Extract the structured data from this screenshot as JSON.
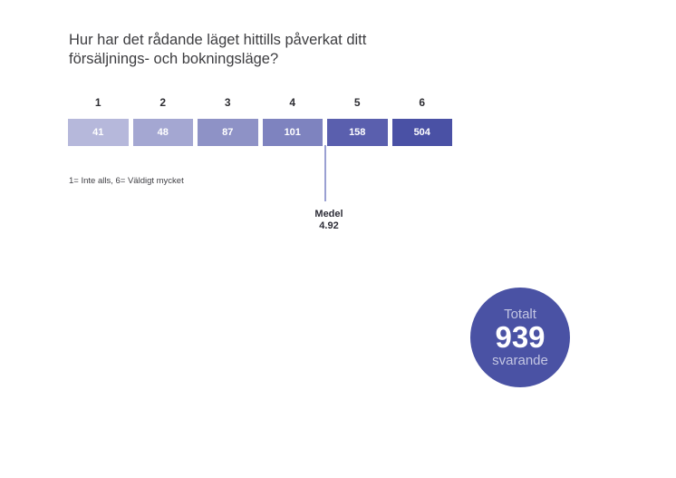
{
  "page": {
    "background": "#ffffff"
  },
  "chart_data": {
    "type": "bar",
    "variant": "horizontal-segmented-scale",
    "title": "Hur har det rådande läget hittills påverkat ditt försäljnings- och bokningsläge?",
    "categories": [
      "1",
      "2",
      "3",
      "4",
      "5",
      "6"
    ],
    "values": [
      41,
      48,
      87,
      101,
      158,
      504
    ],
    "segment_colors": [
      "#b6b8db",
      "#a4a7d2",
      "#8e92c6",
      "#7e83bf",
      "#5a5fae",
      "#4a51a5"
    ],
    "scale_note": "1= Inte alls, 6= Väldigt mycket",
    "mean": {
      "label": "Medel",
      "value": "4.92"
    },
    "mean_line_color": "#9aa0d2",
    "total": {
      "label_top": "Totalt",
      "value": "939",
      "label_bottom": "svarande"
    },
    "total_badge_color": "#4a52a4",
    "legend_position": "none",
    "axis": "none",
    "grid": false
  }
}
